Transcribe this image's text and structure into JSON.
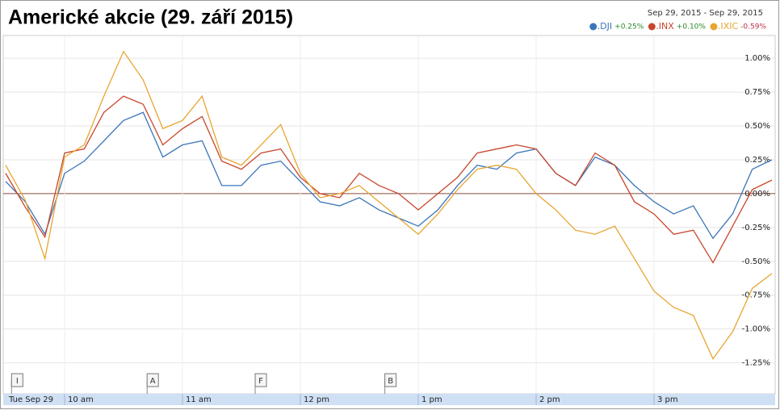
{
  "chart_data": {
    "type": "line",
    "title": "Americké akcie (29. září 2015)",
    "date_range": "Sep 29, 2015  -  Sep 29, 2015",
    "x": [
      570,
      580,
      590,
      600,
      610,
      620,
      630,
      640,
      650,
      660,
      670,
      680,
      690,
      700,
      710,
      720,
      730,
      740,
      750,
      760,
      770,
      780,
      790,
      800,
      810,
      820,
      830,
      840,
      850,
      860,
      870,
      880,
      890,
      900,
      910,
      920,
      930,
      940,
      950,
      960
    ],
    "series": [
      {
        "name": ".DJI",
        "change": "+0.25%",
        "color": "#3a75b8",
        "values": [
          0.09,
          -0.06,
          -0.3,
          0.15,
          0.24,
          0.39,
          0.54,
          0.6,
          0.27,
          0.36,
          0.39,
          0.06,
          0.06,
          0.21,
          0.24,
          0.09,
          -0.06,
          -0.09,
          -0.03,
          -0.12,
          -0.18,
          -0.24,
          -0.12,
          0.06,
          0.21,
          0.18,
          0.3,
          0.33,
          0.15,
          0.06,
          0.27,
          0.21,
          0.06,
          -0.06,
          -0.15,
          -0.09,
          -0.33,
          -0.15,
          0.18,
          0.25
        ]
      },
      {
        "name": ".INX",
        "change": "+0.10%",
        "color": "#c8462c",
        "values": [
          0.15,
          -0.1,
          -0.32,
          0.3,
          0.33,
          0.6,
          0.72,
          0.66,
          0.36,
          0.48,
          0.57,
          0.24,
          0.18,
          0.3,
          0.33,
          0.12,
          0.0,
          -0.03,
          0.15,
          0.06,
          0.0,
          -0.12,
          0.0,
          0.12,
          0.3,
          0.33,
          0.36,
          0.33,
          0.15,
          0.06,
          0.3,
          0.21,
          -0.06,
          -0.15,
          -0.3,
          -0.27,
          -0.51,
          -0.24,
          0.03,
          0.1
        ]
      },
      {
        "name": ".IXIC",
        "change": "-0.59%",
        "color": "#e8a530",
        "values": [
          0.21,
          -0.05,
          -0.48,
          0.27,
          0.36,
          0.72,
          1.05,
          0.84,
          0.48,
          0.54,
          0.72,
          0.27,
          0.21,
          0.36,
          0.51,
          0.15,
          -0.03,
          0.0,
          0.06,
          -0.06,
          -0.18,
          -0.3,
          -0.15,
          0.03,
          0.18,
          0.21,
          0.18,
          0.0,
          -0.12,
          -0.27,
          -0.3,
          -0.24,
          -0.48,
          -0.72,
          -0.84,
          -0.9,
          -1.22,
          -1.02,
          -0.7,
          -0.59
        ]
      }
    ],
    "xlim": [
      570,
      960
    ],
    "xticks": [
      {
        "value": 570,
        "label": "Tue Sep 29"
      },
      {
        "value": 600,
        "label": "10 am"
      },
      {
        "value": 660,
        "label": "11 am"
      },
      {
        "value": 720,
        "label": "12 pm"
      },
      {
        "value": 780,
        "label": "1 pm"
      },
      {
        "value": 840,
        "label": "2 pm"
      },
      {
        "value": 900,
        "label": "3 pm"
      }
    ],
    "ylim": [
      -1.3,
      1.15
    ],
    "yticks": [
      {
        "value": 1,
        "label": "1.00%"
      },
      {
        "value": 0.75,
        "label": "0.75%"
      },
      {
        "value": 0.5,
        "label": "0.50%"
      },
      {
        "value": 0.25,
        "label": "0.25%"
      },
      {
        "value": 0,
        "label": "0.00%"
      },
      {
        "value": -0.25,
        "label": "-0.25%"
      },
      {
        "value": -0.5,
        "label": "-0.50%"
      },
      {
        "value": -0.75,
        "label": "-0.75%"
      },
      {
        "value": -1,
        "label": "-1.00%"
      },
      {
        "value": -1.25,
        "label": "-1.25%"
      }
    ],
    "annotations": [
      {
        "x": 573,
        "label": "I"
      },
      {
        "x": 642,
        "label": "A"
      },
      {
        "x": 697,
        "label": "F"
      },
      {
        "x": 763,
        "label": "B"
      }
    ],
    "grid": true
  }
}
